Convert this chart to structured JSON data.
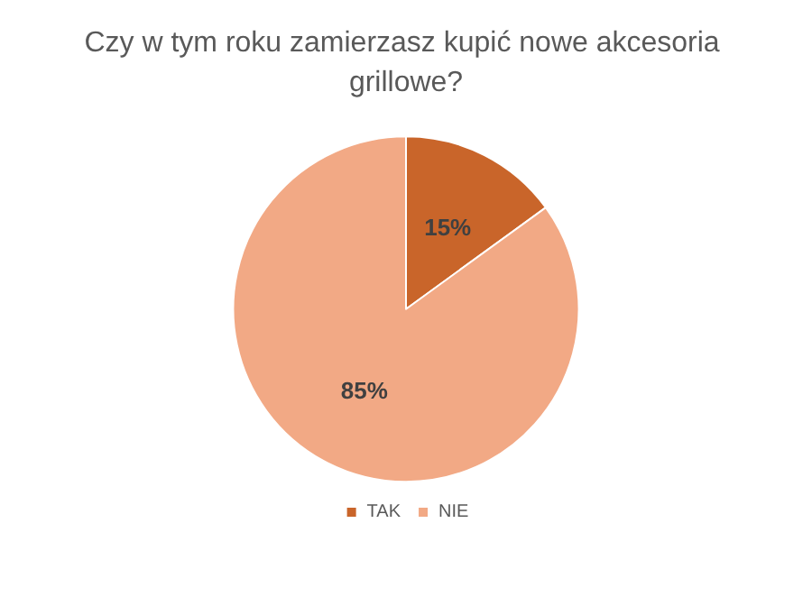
{
  "chart_data": {
    "type": "pie",
    "title": "Czy w tym roku zamierzasz kupić nowe akcesoria grillowe?",
    "categories": [
      "TAK",
      "NIE"
    ],
    "values": [
      15,
      85
    ],
    "colors": [
      "#c9652a",
      "#f2a985"
    ],
    "value_labels": [
      "15%",
      "85%"
    ],
    "legend": "bottom"
  }
}
